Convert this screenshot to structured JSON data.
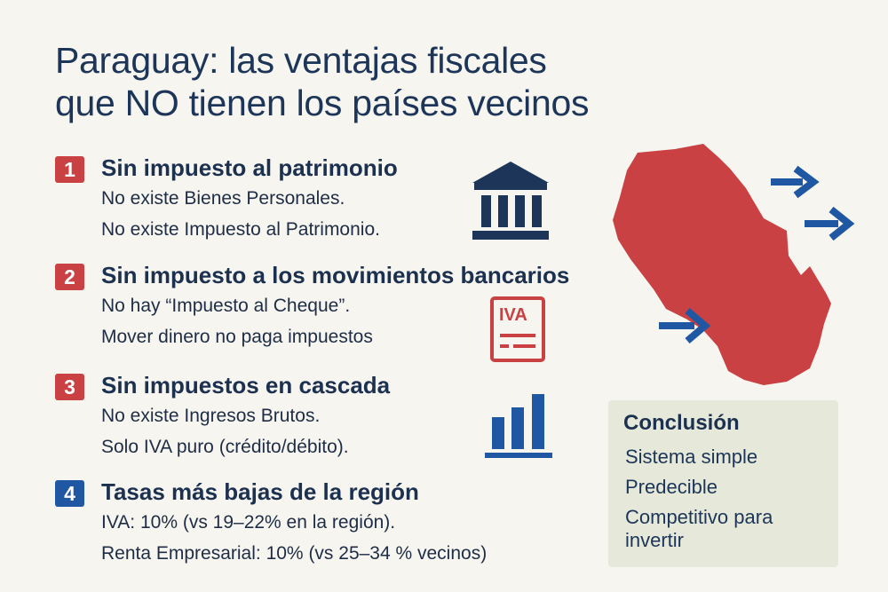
{
  "title": {
    "line1": "Paraguay: las ventajas fiscales",
    "line2": "que NO tienen los países vecinos"
  },
  "items": [
    {
      "number": "1",
      "title": "Sin impuesto al patrimonio",
      "lines": [
        "No existe Bienes Personales.",
        "No existe Impuesto al Patrimonio."
      ],
      "color": "#c94142",
      "icon": "bank-icon"
    },
    {
      "number": "2",
      "title": "Sin impuesto a los movimientos bancarios",
      "lines": [
        "No hay “Impuesto al Cheque”.",
        "Mover dinero no paga impuestos"
      ],
      "color": "#c94142",
      "icon": "iva-document-icon"
    },
    {
      "number": "3",
      "title": "Sin impuestos en cascada",
      "lines": [
        "No existe Ingresos Brutos.",
        "Solo IVA puro (crédito/débito)."
      ],
      "color": "#c94142",
      "icon": "bar-chart-icon"
    },
    {
      "number": "4",
      "title": "Tasas más bajas de la región",
      "lines": [
        "IVA: 10% (vs 19–22% en la región).",
        "Renta Empresarial: 10% (vs 25–34 %  vecinos)"
      ],
      "color": "#1f57a3"
    }
  ],
  "icons": {
    "iva_label": "IVA"
  },
  "map": {
    "name": "paraguay-map",
    "color": "#c94142",
    "arrow_color": "#1f57a3"
  },
  "conclusion": {
    "title": "Conclusión",
    "items": [
      "Sistema simple",
      "Predecible",
      "Competitivo para invertir"
    ]
  }
}
